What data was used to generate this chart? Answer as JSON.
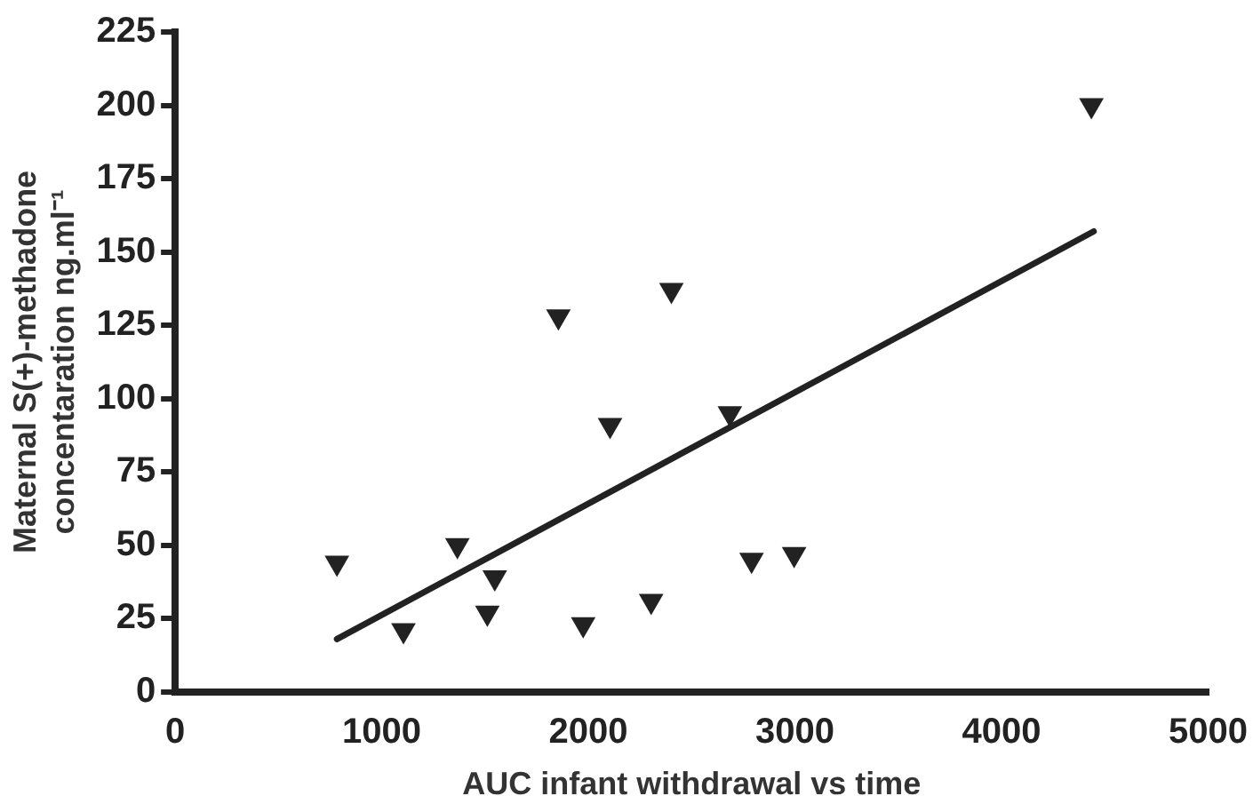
{
  "chart_data": {
    "type": "scatter",
    "xlabel": "AUC infant withdrawal vs time",
    "ylabel": "Maternal S(+)-methadone\nconcentaration ng.ml⁻¹",
    "xlim": [
      0,
      5000
    ],
    "xticks": [
      0,
      1000,
      2000,
      3000,
      4000,
      5000
    ],
    "ylim": [
      0,
      225
    ],
    "yticks": [
      0,
      25,
      50,
      75,
      100,
      125,
      150,
      175,
      200,
      225
    ],
    "grid": false,
    "legend": false,
    "series": [
      {
        "color": "#222222",
        "marker": "triangle",
        "x": [
          783,
          1105,
          1366,
          1511,
          1547,
          1855,
          1975,
          2105,
          2304,
          2402,
          2685,
          2790,
          2996,
          4435
        ],
        "values": [
          44,
          21,
          50,
          27,
          39,
          128,
          23,
          91,
          31,
          137,
          95,
          45,
          47,
          200
        ]
      },
      {
        "type": "line",
        "color": "#222222",
        "marker": "none",
        "x": [
          783,
          4446
        ],
        "values": [
          18,
          157
        ]
      }
    ]
  }
}
